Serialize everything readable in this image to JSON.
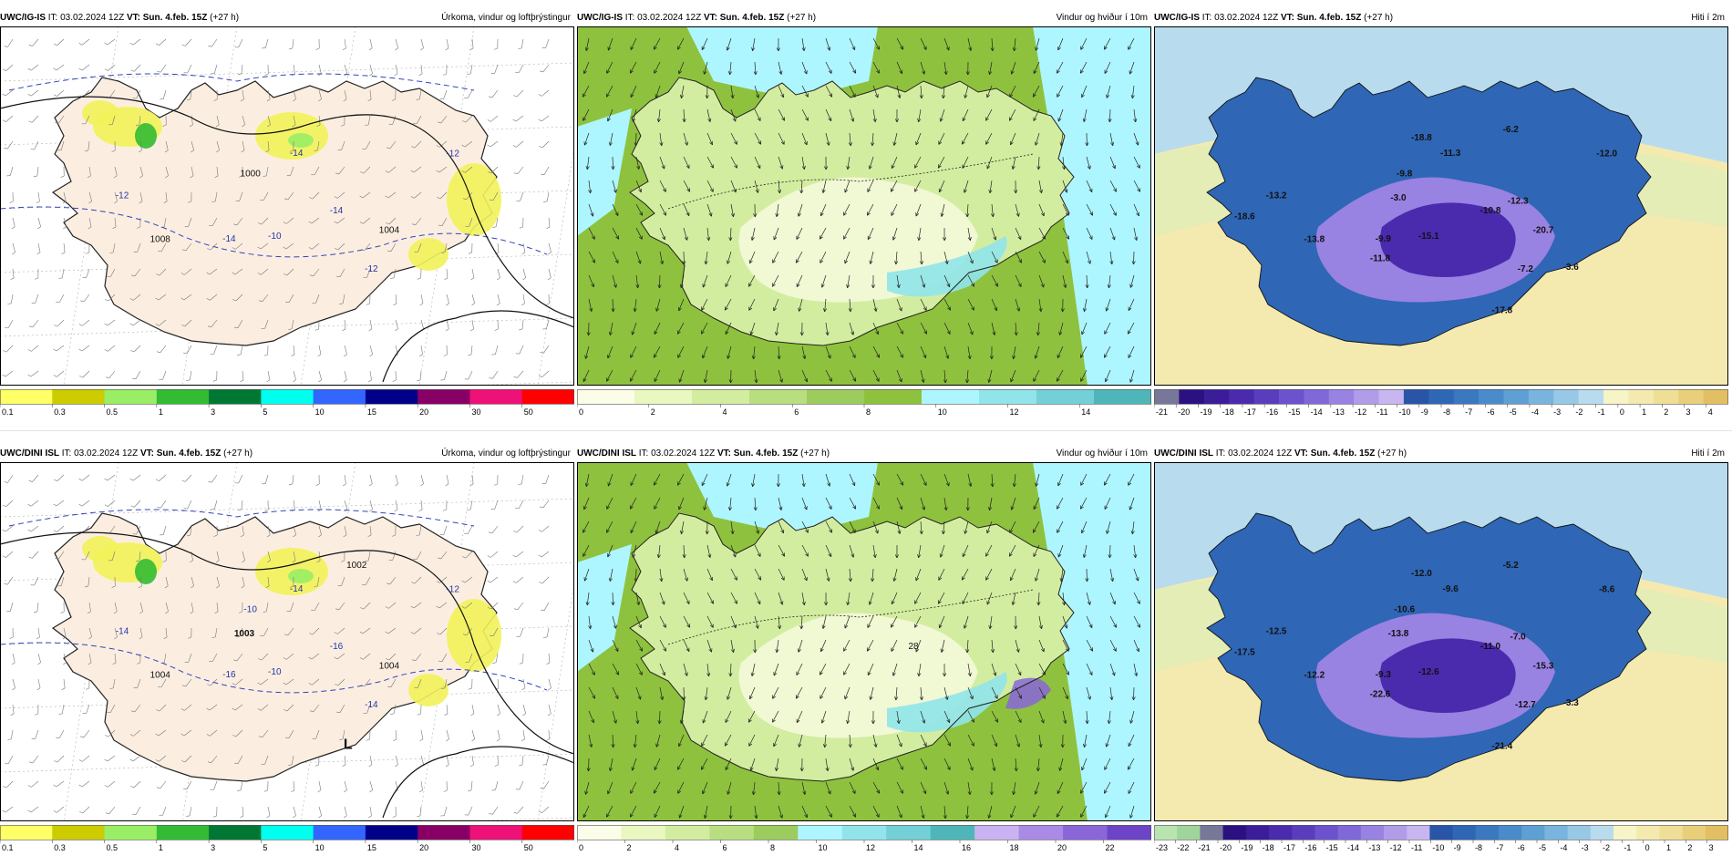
{
  "panels": [
    {
      "model": "UWC/IG-IS",
      "it_label": "IT:",
      "it": "03.02.2024 12Z",
      "vt_label": "VT:",
      "vt": "Sun. 4.feb. 15Z",
      "lead": "(+27 h)",
      "title": "Úrkoma, vindur og loftþrýstingur",
      "variant": "precip",
      "labels": [
        "-14",
        "-14",
        "-14",
        "-12",
        "-12",
        "-12",
        "-10",
        "1000",
        "1004",
        "1008"
      ],
      "colorbar": {
        "colors": [
          "#ffff66",
          "#cccc00",
          "#99ee66",
          "#33bb33",
          "#007733",
          "#00ffee",
          "#3366ff",
          "#000088",
          "#880066",
          "#ee1177",
          "#ff0000"
        ],
        "ticks": [
          "0.1",
          "0.3",
          "0.5",
          "1",
          "3",
          "5",
          "10",
          "15",
          "20",
          "30",
          "50"
        ]
      }
    },
    {
      "model": "UWC/IG-IS",
      "it_label": "IT:",
      "it": "03.02.2024 12Z",
      "vt_label": "VT:",
      "vt": "Sun. 4.feb. 15Z",
      "lead": "(+27 h)",
      "title": "Vindur og hviður í 10m",
      "variant": "wind",
      "labels": [],
      "colorbar": {
        "colors": [
          "#fbfde8",
          "#e9f7c0",
          "#d3eda0",
          "#b8de80",
          "#9ccc5e",
          "#8ec23e",
          "#aef6ff",
          "#90e4ea",
          "#72d0d6",
          "#4eb6b8"
        ],
        "ticks": [
          "0",
          "2",
          "4",
          "6",
          "8",
          "10",
          "12",
          "14"
        ]
      }
    },
    {
      "model": "UWC/IG-IS",
      "it_label": "IT:",
      "it": "03.02.2024 12Z",
      "vt_label": "VT:",
      "vt": "Sun. 4.feb. 15Z",
      "lead": "(+27 h)",
      "title": "Hiti í 2m",
      "variant": "temp",
      "labels": [
        "-10.8",
        "-9.9",
        "-11.3",
        "-7.2",
        "-13.2",
        "-12.0",
        "-15.1",
        "-9.8",
        "-20.7",
        "-13.8",
        "-6.2",
        "-17.8",
        "-3.0",
        "-12.3",
        "-11.8",
        "-18.8",
        "-3.6",
        "-18.6"
      ],
      "colorbar": {
        "colors": [
          "#777799",
          "#2a1080",
          "#3b1d99",
          "#4a2aad",
          "#5a3dbd",
          "#6c52cc",
          "#8068d8",
          "#9882e2",
          "#b09ce9",
          "#c7b6ef",
          "#2855a8",
          "#2f66b5",
          "#3a78c0",
          "#4a8bcb",
          "#5e9fd4",
          "#78b4dd",
          "#97c8e6",
          "#b8dcee",
          "#f7f4c8",
          "#f4eab0",
          "#efdf96",
          "#eacf7a",
          "#e2bf62"
        ],
        "ticks": [
          "-21",
          "-20",
          "-19",
          "-18",
          "-17",
          "-16",
          "-15",
          "-14",
          "-13",
          "-12",
          "-11",
          "-10",
          "-9",
          "-8",
          "-7",
          "-6",
          "-5",
          "-4",
          "-3",
          "-2",
          "-1",
          "0",
          "1",
          "2",
          "3",
          "4"
        ]
      }
    },
    {
      "model": "UWC/DINI ISL",
      "it_label": "IT:",
      "it": "03.02.2024 12Z",
      "vt_label": "VT:",
      "vt": "Sun. 4.feb. 15Z",
      "lead": "(+27 h)",
      "title": "Úrkoma, vindur og loftþrýstingur",
      "variant": "precip",
      "labels": [
        "-16",
        "-16",
        "-14",
        "-14",
        "-14",
        "-12",
        "-10",
        "-10",
        "1004",
        "1004",
        "1002",
        "L",
        "1003"
      ],
      "colorbar": {
        "colors": [
          "#ffff66",
          "#cccc00",
          "#99ee66",
          "#33bb33",
          "#007733",
          "#00ffee",
          "#3366ff",
          "#000088",
          "#880066",
          "#ee1177",
          "#ff0000"
        ],
        "ticks": [
          "0.1",
          "0.3",
          "0.5",
          "1",
          "3",
          "5",
          "10",
          "15",
          "20",
          "30",
          "50"
        ]
      }
    },
    {
      "model": "UWC/DINI ISL",
      "it_label": "IT:",
      "it": "03.02.2024 12Z",
      "vt_label": "VT:",
      "vt": "Sun. 4.feb. 15Z",
      "lead": "(+27 h)",
      "title": "Vindur og hviður í 10m",
      "variant": "wind",
      "labels": [
        "28"
      ],
      "colorbar": {
        "colors": [
          "#fbfde8",
          "#e9f7c0",
          "#d3eda0",
          "#b8de80",
          "#9ccc5e",
          "#aef6ff",
          "#90e4ea",
          "#72d0d6",
          "#4eb6b8",
          "#c9b3f2",
          "#a98ae6",
          "#8a66d8",
          "#6d44c8"
        ],
        "ticks": [
          "0",
          "2",
          "4",
          "6",
          "8",
          "10",
          "12",
          "14",
          "16",
          "18",
          "20",
          "22"
        ]
      }
    },
    {
      "model": "UWC/DINI ISL",
      "it_label": "IT:",
      "it": "03.02.2024 12Z",
      "vt_label": "VT:",
      "vt": "Sun. 4.feb. 15Z",
      "lead": "(+27 h)",
      "title": "Hiti í 2m",
      "variant": "temp",
      "labels": [
        "-11.0",
        "-9.3",
        "-9.6",
        "-12.7",
        "-12.5",
        "-8.6",
        "-12.6",
        "-10.6",
        "-15.3",
        "-12.2",
        "-5.2",
        "-21.4",
        "-13.8",
        "-7.0",
        "-22.6",
        "-12.0",
        "-3.3",
        "-17.5"
      ],
      "colorbar": {
        "colors": [
          "#b8e4b0",
          "#9fd59a",
          "#777799",
          "#2a1080",
          "#3b1d99",
          "#4a2aad",
          "#5a3dbd",
          "#6c52cc",
          "#8068d8",
          "#9882e2",
          "#b09ce9",
          "#c7b6ef",
          "#2855a8",
          "#2f66b5",
          "#3a78c0",
          "#4a8bcb",
          "#5e9fd4",
          "#78b4dd",
          "#97c8e6",
          "#b8dcee",
          "#f7f4c8",
          "#f4eab0",
          "#efdf96",
          "#eacf7a",
          "#e2bf62"
        ],
        "ticks": [
          "-23",
          "-22",
          "-21",
          "-20",
          "-19",
          "-18",
          "-17",
          "-16",
          "-15",
          "-14",
          "-13",
          "-12",
          "-11",
          "-10",
          "-9",
          "-8",
          "-7",
          "-6",
          "-5",
          "-4",
          "-3",
          "-2",
          "-1",
          "0",
          "1",
          "2",
          "3"
        ]
      }
    }
  ]
}
